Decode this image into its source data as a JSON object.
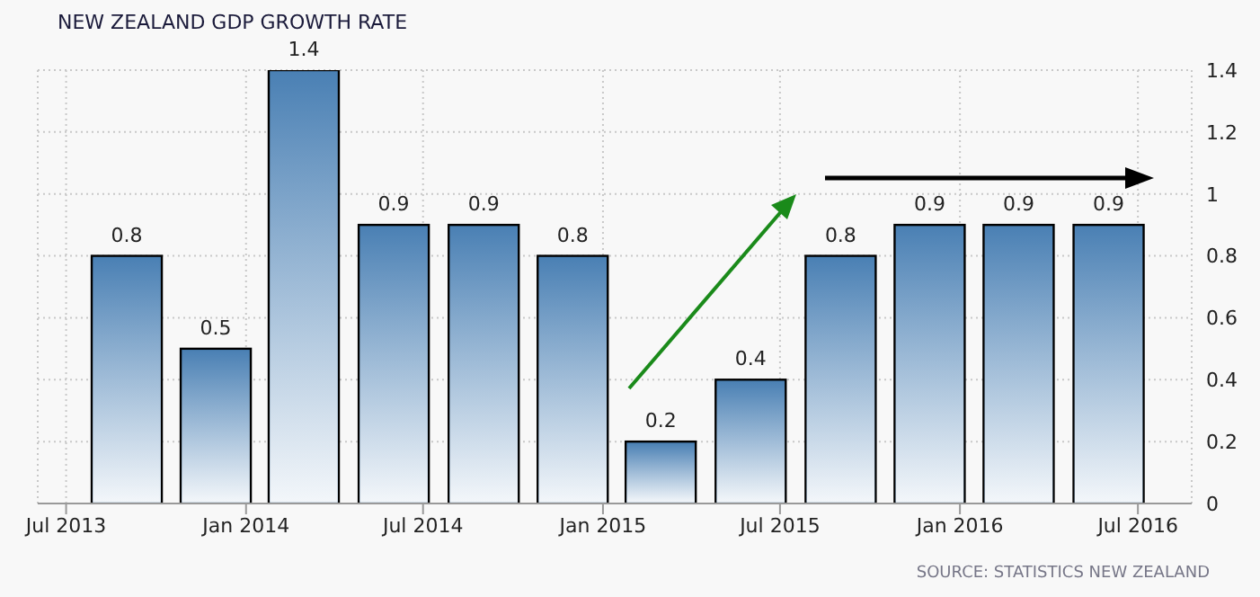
{
  "chart_data": {
    "type": "bar",
    "title": "NEW ZEALAND GDP GROWTH RATE",
    "x": [
      "2013-09",
      "2013-12",
      "2014-03",
      "2014-06",
      "2014-09",
      "2014-12",
      "2015-03",
      "2015-06",
      "2015-09",
      "2015-12",
      "2016-03",
      "2016-06"
    ],
    "values": [
      0.8,
      0.5,
      1.4,
      0.9,
      0.9,
      0.8,
      0.2,
      0.4,
      0.8,
      0.9,
      0.9,
      0.9
    ],
    "color": "#4a80b4",
    "xlim": [
      "2013-06-02",
      "2016-08-25"
    ],
    "xticks": [
      {
        "value": "2013-07",
        "label": "Jul 2013"
      },
      {
        "value": "2014-01",
        "label": "Jan 2014"
      },
      {
        "value": "2014-07",
        "label": "Jul 2014"
      },
      {
        "value": "2015-01",
        "label": "Jan 2015"
      },
      {
        "value": "2015-07",
        "label": "Jul 2015"
      },
      {
        "value": "2016-01",
        "label": "Jan 2016"
      },
      {
        "value": "2016-07",
        "label": "Jul 2016"
      }
    ],
    "ylim": [
      0,
      1.4
    ],
    "yticks": [
      0,
      0.2,
      0.4,
      0.6,
      0.8,
      1,
      1.2,
      1.4
    ],
    "grid": true,
    "data_labels": true,
    "annotations": [
      "SOURCE: STATISTICS NEW ZEALAND"
    ]
  }
}
